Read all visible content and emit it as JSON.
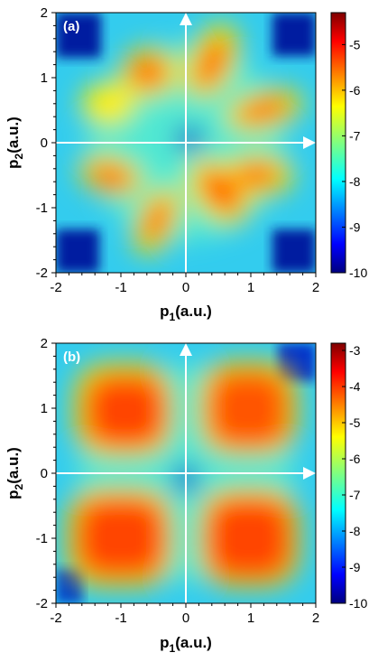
{
  "chart_data": [
    {
      "type": "heatmap",
      "panel_label": "(a)",
      "xlabel": {
        "main": "p",
        "sub": "1",
        "rest": "(a.u.)"
      },
      "ylabel": {
        "main": "p",
        "sub": "2",
        "rest": "(a.u.)"
      },
      "xlim": [
        -2,
        2
      ],
      "ylim": [
        -2,
        2
      ],
      "xticks": [
        "-2",
        "-1",
        "0",
        "1",
        "2"
      ],
      "yticks": [
        "-2",
        "-1",
        "0",
        "1",
        "2"
      ],
      "colorbar": {
        "min": -10,
        "max": -4.3,
        "ticks": [
          "-5",
          "-6",
          "-7",
          "-8",
          "-9",
          "-10"
        ],
        "tick_values": [
          -5,
          -6,
          -7,
          -8,
          -9,
          -10
        ]
      },
      "blobs": [
        {
          "x": 0.4,
          "y": 1.25,
          "value": -5.0
        },
        {
          "x": 1.2,
          "y": 0.5,
          "value": -5.1
        },
        {
          "x": -0.55,
          "y": 1.1,
          "value": -5.2
        },
        {
          "x": -1.2,
          "y": 0.6,
          "value": -5.9
        },
        {
          "x": -1.15,
          "y": -0.5,
          "value": -5.1
        },
        {
          "x": -0.45,
          "y": -1.2,
          "value": -5.1
        },
        {
          "x": 0.5,
          "y": -0.75,
          "value": -5.0
        },
        {
          "x": 1.1,
          "y": -0.5,
          "value": -5.4
        }
      ],
      "colors": {
        "background_max": "#7f0000",
        "background_min": "#00007f",
        "axes_arrows": "#ffffff"
      }
    },
    {
      "type": "heatmap",
      "panel_label": "(b)",
      "xlabel": {
        "main": "p",
        "sub": "1",
        "rest": "(a.u.)"
      },
      "ylabel": {
        "main": "p",
        "sub": "2",
        "rest": "(a.u.)"
      },
      "xlim": [
        -2,
        2
      ],
      "ylim": [
        -2,
        2
      ],
      "xticks": [
        "-2",
        "-1",
        "0",
        "1",
        "2"
      ],
      "yticks": [
        "-2",
        "-1",
        "0",
        "1",
        "2"
      ],
      "colorbar": {
        "min": -10,
        "max": -2.8,
        "ticks": [
          "-3",
          "-4",
          "-5",
          "-6",
          "-7",
          "-8",
          "-9",
          "-10"
        ],
        "tick_values": [
          -3,
          -4,
          -5,
          -6,
          -7,
          -8,
          -9,
          -10
        ]
      },
      "blobs": [
        {
          "x": -1.0,
          "y": 1.0,
          "value": -4.0
        },
        {
          "x": 1.0,
          "y": 1.0,
          "value": -4.1
        },
        {
          "x": -1.0,
          "y": -1.0,
          "value": -4.0
        },
        {
          "x": 1.0,
          "y": -1.0,
          "value": -4.0
        },
        {
          "x": 1.4,
          "y": 0.3,
          "value": -4.6
        },
        {
          "x": -1.5,
          "y": -0.3,
          "value": -4.6
        }
      ],
      "colors": {
        "background_max": "#7f0000",
        "background_min": "#00007f",
        "axes_arrows": "#ffffff"
      }
    }
  ]
}
